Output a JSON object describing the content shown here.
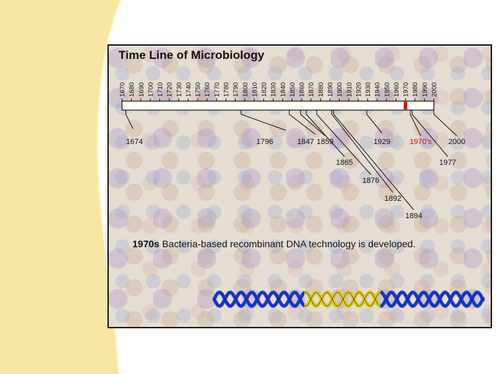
{
  "title": "Time Line of Microbiology",
  "decade_ticks": [
    "1670",
    "1680",
    "1690",
    "1700",
    "1710",
    "1720",
    "1730",
    "1740",
    "1750",
    "1760",
    "1770",
    "1780",
    "1790",
    "1800",
    "1810",
    "1820",
    "1830",
    "1840",
    "1850",
    "1860",
    "1870",
    "1880",
    "1890",
    "1900",
    "1910",
    "1920",
    "1930",
    "1940",
    "1950",
    "1960",
    "1970",
    "1980",
    "1990",
    "2000"
  ],
  "axis_range": [
    1670,
    2000
  ],
  "highlighted_decade": "1970",
  "events": [
    {
      "label": "1674",
      "year": 1674,
      "highlight": false
    },
    {
      "label": "1796",
      "year": 1796,
      "highlight": false
    },
    {
      "label": "1847",
      "year": 1847,
      "highlight": false
    },
    {
      "label": "1859",
      "year": 1859,
      "highlight": false
    },
    {
      "label": "1865",
      "year": 1865,
      "highlight": false
    },
    {
      "label": "1876",
      "year": 1876,
      "highlight": false
    },
    {
      "label": "1892",
      "year": 1892,
      "highlight": false
    },
    {
      "label": "1894",
      "year": 1894,
      "highlight": false
    },
    {
      "label": "1929",
      "year": 1929,
      "highlight": false
    },
    {
      "label": "1970's",
      "year": 1975,
      "highlight": true
    },
    {
      "label": "1977",
      "year": 1977,
      "highlight": false
    },
    {
      "label": "2000",
      "year": 2000,
      "highlight": false
    }
  ],
  "caption": {
    "year": "1970s",
    "text": " Bacteria-based recombinant DNA technology is developed."
  },
  "colors": {
    "highlight": "#cc1111",
    "dna_blue": "#1a3fd0",
    "dna_yellow": "#e8d000",
    "swoosh": "#f7e6a3"
  }
}
